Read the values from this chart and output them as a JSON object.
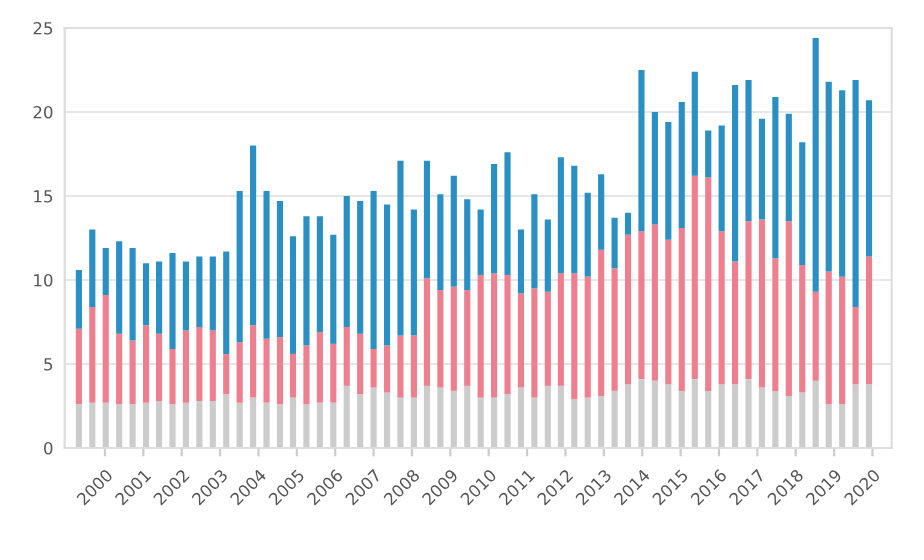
{
  "chart_data": {
    "type": "bar",
    "stacked": true,
    "grid": "y",
    "legend": false,
    "x": [
      1999.32,
      1999.67,
      2000.02,
      2000.37,
      2000.72,
      2001.07,
      2001.41,
      2001.76,
      2002.11,
      2002.46,
      2002.81,
      2003.16,
      2003.51,
      2003.86,
      2004.21,
      2004.56,
      2004.9,
      2005.25,
      2005.6,
      2005.95,
      2006.3,
      2006.65,
      2007.0,
      2007.35,
      2007.7,
      2008.05,
      2008.39,
      2008.74,
      2009.09,
      2009.44,
      2009.79,
      2010.14,
      2010.49,
      2010.84,
      2011.19,
      2011.54,
      2011.88,
      2012.23,
      2012.58,
      2012.93,
      2013.28,
      2013.63,
      2013.98,
      2014.33,
      2014.68,
      2015.03,
      2015.37,
      2015.72,
      2016.07,
      2016.42,
      2016.77,
      2017.12,
      2017.47,
      2017.82,
      2018.17,
      2018.52,
      2018.86,
      2019.21,
      2019.56,
      2019.91
    ],
    "xlim": [
      1998.95,
      2020.5
    ],
    "xticks": [
      2000,
      2001,
      2002,
      2003,
      2004,
      2005,
      2006,
      2007,
      2008,
      2009,
      2010,
      2011,
      2012,
      2013,
      2014,
      2015,
      2016,
      2017,
      2018,
      2019,
      2020
    ],
    "ylim": [
      0,
      25
    ],
    "yticks": [
      0,
      5,
      10,
      15,
      20,
      25
    ],
    "series": [
      {
        "color": "#cccccc",
        "values": [
          2.6,
          2.7,
          2.7,
          2.6,
          2.6,
          2.7,
          2.8,
          2.6,
          2.7,
          2.8,
          2.8,
          3.2,
          2.7,
          3.0,
          2.7,
          2.6,
          3.0,
          2.6,
          2.7,
          2.7,
          3.7,
          3.2,
          3.6,
          3.3,
          3.0,
          3.0,
          3.7,
          3.6,
          3.4,
          3.7,
          3.0,
          3.0,
          3.2,
          3.6,
          3.0,
          3.7,
          3.7,
          2.9,
          3.0,
          3.1,
          3.4,
          3.8,
          4.1,
          4.0,
          3.8,
          3.4,
          4.1,
          3.4,
          3.8,
          3.8,
          4.1,
          3.6,
          3.4,
          3.1,
          3.3,
          4.0,
          2.6,
          2.6,
          3.8,
          3.8
        ]
      },
      {
        "color": "#ee7f8f",
        "values": [
          4.5,
          5.7,
          6.4,
          4.2,
          3.8,
          4.6,
          4.0,
          3.3,
          4.3,
          4.4,
          4.2,
          2.4,
          3.6,
          4.3,
          3.8,
          4.0,
          2.6,
          3.5,
          4.2,
          3.5,
          3.5,
          3.6,
          2.3,
          2.8,
          3.7,
          3.7,
          6.4,
          5.8,
          6.2,
          5.7,
          7.3,
          7.4,
          7.1,
          5.6,
          6.5,
          5.6,
          6.7,
          7.5,
          7.2,
          8.7,
          7.3,
          8.9,
          8.8,
          9.3,
          8.6,
          9.7,
          12.1,
          12.7,
          9.1,
          7.3,
          9.4,
          10.0,
          7.9,
          10.4,
          7.6,
          5.3,
          7.9,
          7.6,
          4.6,
          7.6
        ]
      },
      {
        "color": "#2a8fc2",
        "values": [
          3.5,
          4.6,
          2.8,
          5.5,
          5.5,
          3.7,
          4.3,
          5.7,
          4.1,
          4.2,
          4.4,
          6.1,
          9.0,
          10.7,
          8.8,
          8.1,
          7.0,
          7.7,
          6.9,
          6.5,
          7.8,
          7.9,
          9.4,
          8.4,
          10.4,
          7.5,
          7.0,
          5.7,
          6.6,
          5.4,
          3.9,
          6.5,
          7.3,
          3.8,
          5.6,
          4.3,
          6.9,
          6.4,
          5.0,
          4.5,
          3.0,
          1.3,
          9.6,
          6.7,
          7.0,
          7.5,
          6.2,
          2.8,
          6.3,
          10.5,
          8.4,
          6.0,
          9.6,
          6.4,
          7.3,
          15.1,
          11.3,
          11.1,
          13.5,
          9.3
        ]
      }
    ]
  }
}
